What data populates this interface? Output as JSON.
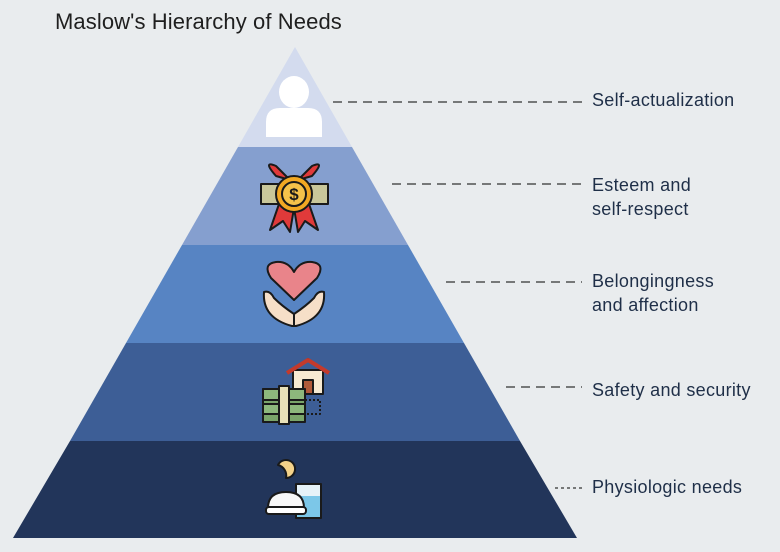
{
  "title": "Maslow's Hierarchy of Needs",
  "colors": {
    "background": "#e9ecee",
    "tier_fills": [
      "#d3dbee",
      "#859fcf",
      "#5784c3",
      "#3d5e96",
      "#22355a"
    ],
    "dash": "#333333"
  },
  "levels": [
    {
      "lines": [
        "Self-actualization"
      ],
      "icon": "person-icon"
    },
    {
      "lines": [
        "Esteem and",
        "self-respect"
      ],
      "icon": "medal-icon"
    },
    {
      "lines": [
        "Belongingness",
        "and affection"
      ],
      "icon": "heart-hands-icon"
    },
    {
      "lines": [
        "Safety and security"
      ],
      "icon": "house-money-icon"
    },
    {
      "lines": [
        "Physiologic needs"
      ],
      "icon": "food-water-icon"
    }
  ]
}
